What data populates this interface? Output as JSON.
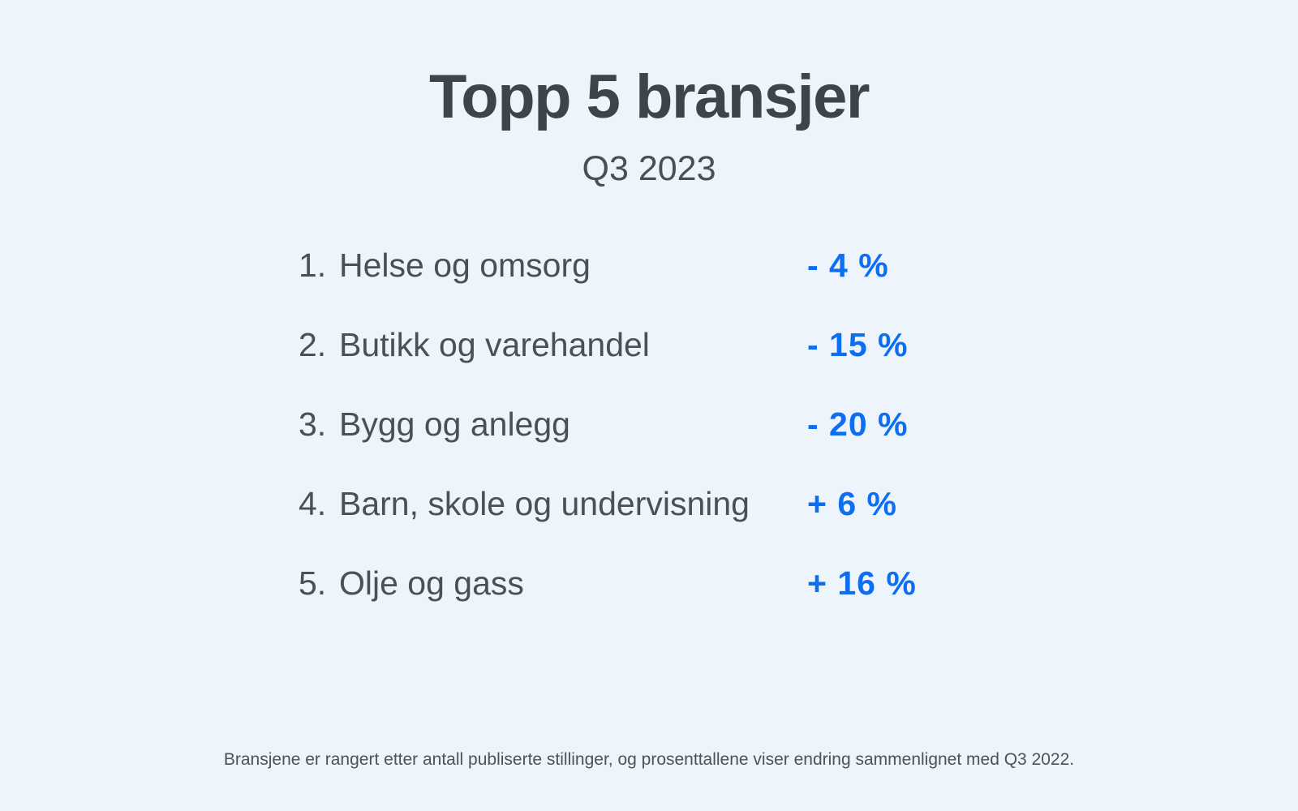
{
  "page": {
    "title": "Topp 5 bransjer",
    "subtitle": "Q3 2023",
    "footnote": "Bransjene er rangert etter antall publiserte stillinger, og prosenttallene viser endring sammenlignet med Q3 2022."
  },
  "list": {
    "items": [
      {
        "rank": "1.",
        "label": "Helse og omsorg",
        "change": "- 4 %"
      },
      {
        "rank": "2.",
        "label": "Butikk og varehandel",
        "change": "- 15 %"
      },
      {
        "rank": "3.",
        "label": "Bygg og anlegg",
        "change": "- 20 %"
      },
      {
        "rank": "4.",
        "label": "Barn, skole og undervisning",
        "change": "+ 6 %"
      },
      {
        "rank": "5.",
        "label": "Olje og gass",
        "change": "+ 16 %"
      }
    ]
  },
  "chart_data": {
    "type": "table",
    "title": "Topp 5 bransjer",
    "subtitle": "Q3 2023",
    "categories": [
      "Helse og omsorg",
      "Butikk og varehandel",
      "Bygg og anlegg",
      "Barn, skole og undervisning",
      "Olje og gass"
    ],
    "values": [
      -4,
      -15,
      -20,
      6,
      16
    ],
    "value_unit": "%",
    "value_labels": [
      "- 4 %",
      "- 15 %",
      "- 20 %",
      "+ 6 %",
      "+ 16 %"
    ],
    "note": "Bransjene er rangert etter antall publiserte stillinger, og prosenttallene viser endring sammenlignet med Q3 2022."
  },
  "colors": {
    "background": "#edf4fb",
    "title_text": "#3f434c",
    "body_text": "#4b4f58",
    "accent_blue": "#0d6ef2"
  }
}
